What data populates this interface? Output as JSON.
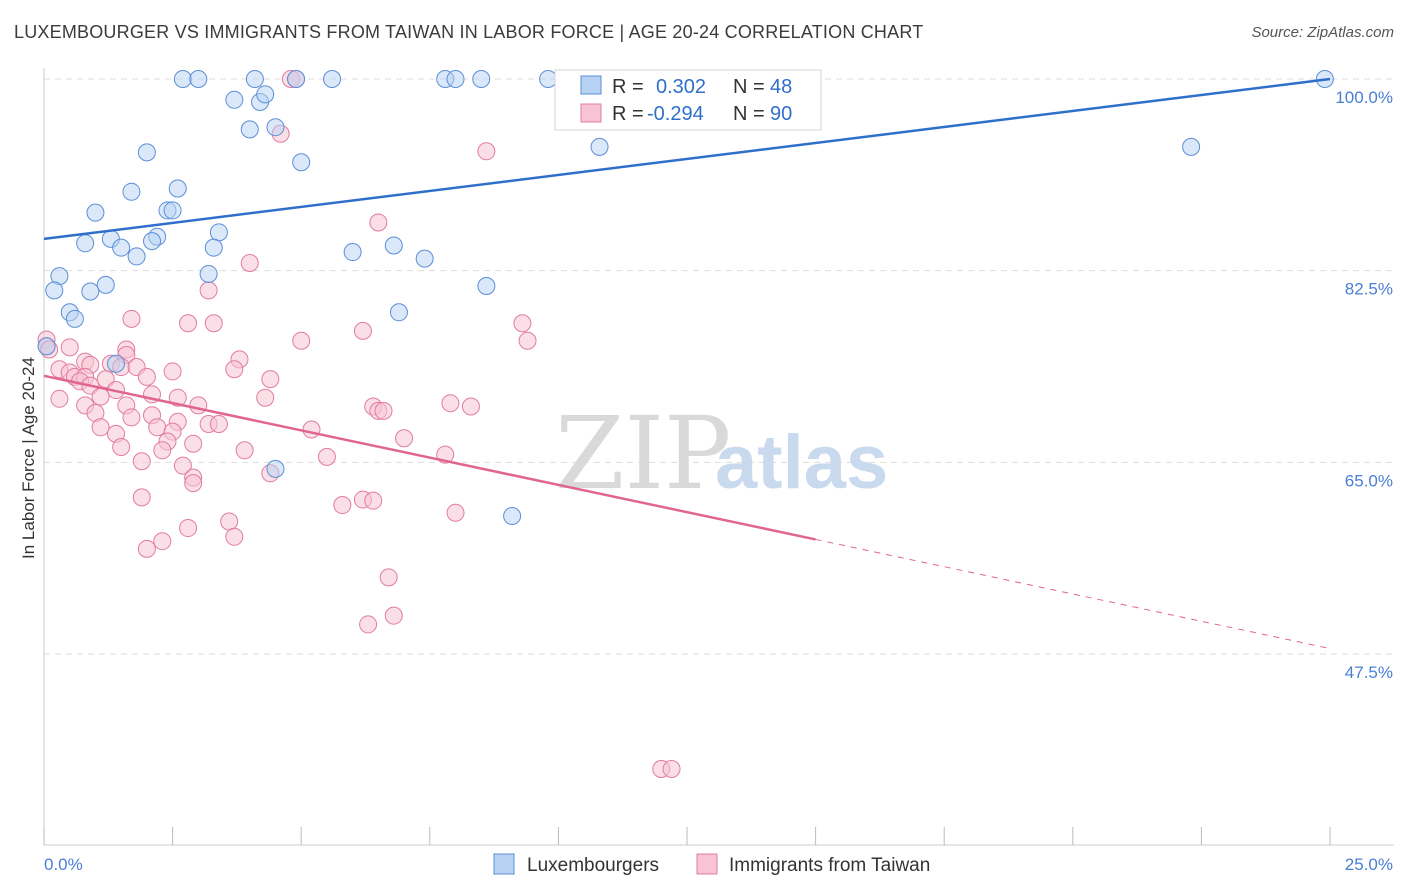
{
  "header": {
    "title": "LUXEMBOURGER VS IMMIGRANTS FROM TAIWAN IN LABOR FORCE | AGE 20-24 CORRELATION CHART",
    "source": "Source: ZipAtlas.com"
  },
  "watermark": {
    "zip": "ZIP",
    "atlas": "atlas"
  },
  "colors": {
    "blue_fill": "#b8d2f4",
    "blue_stroke": "#5b8fd6",
    "blue_line": "#2f6fcc",
    "pink_fill": "#f8c4d4",
    "pink_stroke": "#e17ca0",
    "pink_line": "#e0668f",
    "tick_label": "#4a7fd4",
    "grid": "#dddddd"
  },
  "legend": {
    "rows": [
      {
        "r_label": "R =",
        "r_value": "0.302",
        "n_label": "N =",
        "n_value": "48"
      },
      {
        "r_label": "R =",
        "r_value": "-0.294",
        "n_label": "N =",
        "n_value": "90"
      }
    ]
  },
  "chart_data": {
    "type": "scatter",
    "title": "LUXEMBOURGER VS IMMIGRANTS FROM TAIWAN IN LABOR FORCE | AGE 20-24 CORRELATION CHART",
    "xlabel": "",
    "ylabel": "In Labor Force | Age 20-24",
    "xlim": [
      0,
      25
    ],
    "ylim": [
      29,
      102
    ],
    "x_tick_labels": [
      "0.0%",
      "25.0%"
    ],
    "y_ticks": [
      47.5,
      65.0,
      82.5,
      100.0
    ],
    "y_tick_labels": [
      "47.5%",
      "65.0%",
      "82.5%",
      "100.0%"
    ],
    "grid": true,
    "legend_position": "top-center",
    "series": [
      {
        "name": "Luxembourgers",
        "color": "#5b8fd6",
        "r": 0.302,
        "n": 48,
        "trend": {
          "x": [
            0,
            25
          ],
          "y": [
            85.4,
            100.0
          ],
          "solid_until": 25
        },
        "points": [
          {
            "x": 2.7,
            "y": 100
          },
          {
            "x": 3.0,
            "y": 100
          },
          {
            "x": 4.1,
            "y": 100
          },
          {
            "x": 4.9,
            "y": 100
          },
          {
            "x": 5.6,
            "y": 100
          },
          {
            "x": 7.8,
            "y": 100
          },
          {
            "x": 8.0,
            "y": 100
          },
          {
            "x": 8.5,
            "y": 100
          },
          {
            "x": 9.8,
            "y": 100
          },
          {
            "x": 24.9,
            "y": 100
          },
          {
            "x": 3.7,
            "y": 98.1
          },
          {
            "x": 4.2,
            "y": 97.9
          },
          {
            "x": 4.3,
            "y": 98.6
          },
          {
            "x": 4.0,
            "y": 95.4
          },
          {
            "x": 4.5,
            "y": 95.6
          },
          {
            "x": 5.0,
            "y": 92.4
          },
          {
            "x": 2.0,
            "y": 93.3
          },
          {
            "x": 10.8,
            "y": 93.8
          },
          {
            "x": 22.3,
            "y": 93.8
          },
          {
            "x": 1.7,
            "y": 89.7
          },
          {
            "x": 2.6,
            "y": 90.0
          },
          {
            "x": 2.4,
            "y": 88.0
          },
          {
            "x": 2.5,
            "y": 88.0
          },
          {
            "x": 1.0,
            "y": 87.8
          },
          {
            "x": 3.4,
            "y": 86.0
          },
          {
            "x": 2.2,
            "y": 85.6
          },
          {
            "x": 2.1,
            "y": 85.2
          },
          {
            "x": 1.3,
            "y": 85.4
          },
          {
            "x": 0.8,
            "y": 85.0
          },
          {
            "x": 1.5,
            "y": 84.6
          },
          {
            "x": 3.3,
            "y": 84.6
          },
          {
            "x": 1.8,
            "y": 83.8
          },
          {
            "x": 6.0,
            "y": 84.2
          },
          {
            "x": 6.8,
            "y": 84.8
          },
          {
            "x": 7.4,
            "y": 83.6
          },
          {
            "x": 3.2,
            "y": 82.2
          },
          {
            "x": 0.3,
            "y": 82.0
          },
          {
            "x": 1.2,
            "y": 81.2
          },
          {
            "x": 0.2,
            "y": 80.7
          },
          {
            "x": 0.9,
            "y": 80.6
          },
          {
            "x": 8.6,
            "y": 81.1
          },
          {
            "x": 0.5,
            "y": 78.7
          },
          {
            "x": 0.6,
            "y": 78.1
          },
          {
            "x": 6.9,
            "y": 78.7
          },
          {
            "x": 1.4,
            "y": 74.0
          },
          {
            "x": 4.5,
            "y": 64.4
          },
          {
            "x": 9.1,
            "y": 60.1
          },
          {
            "x": 0.05,
            "y": 75.6
          }
        ]
      },
      {
        "name": "Immigrants from Taiwan",
        "color": "#e17ca0",
        "r": -0.294,
        "n": 90,
        "trend": {
          "x": [
            0,
            25
          ],
          "y": [
            72.9,
            48.0
          ],
          "solid_until": 15
        },
        "points": [
          {
            "x": 4.8,
            "y": 100
          },
          {
            "x": 4.9,
            "y": 100
          },
          {
            "x": 4.6,
            "y": 95.0
          },
          {
            "x": 8.6,
            "y": 93.4
          },
          {
            "x": 6.5,
            "y": 86.9
          },
          {
            "x": 4.0,
            "y": 83.2
          },
          {
            "x": 3.2,
            "y": 80.7
          },
          {
            "x": 1.7,
            "y": 78.1
          },
          {
            "x": 2.8,
            "y": 77.7
          },
          {
            "x": 3.3,
            "y": 77.7
          },
          {
            "x": 6.2,
            "y": 77.0
          },
          {
            "x": 5.0,
            "y": 76.1
          },
          {
            "x": 9.3,
            "y": 77.7
          },
          {
            "x": 9.4,
            "y": 76.1
          },
          {
            "x": 0.05,
            "y": 76.2
          },
          {
            "x": 0.05,
            "y": 75.6
          },
          {
            "x": 0.1,
            "y": 75.3
          },
          {
            "x": 0.5,
            "y": 75.5
          },
          {
            "x": 1.6,
            "y": 75.3
          },
          {
            "x": 1.6,
            "y": 74.8
          },
          {
            "x": 3.8,
            "y": 74.4
          },
          {
            "x": 0.8,
            "y": 74.2
          },
          {
            "x": 0.9,
            "y": 73.9
          },
          {
            "x": 1.3,
            "y": 74.0
          },
          {
            "x": 1.5,
            "y": 73.7
          },
          {
            "x": 1.8,
            "y": 73.7
          },
          {
            "x": 2.5,
            "y": 73.3
          },
          {
            "x": 3.7,
            "y": 73.5
          },
          {
            "x": 0.3,
            "y": 73.5
          },
          {
            "x": 0.5,
            "y": 73.2
          },
          {
            "x": 0.6,
            "y": 72.8
          },
          {
            "x": 0.8,
            "y": 72.8
          },
          {
            "x": 0.7,
            "y": 72.4
          },
          {
            "x": 1.2,
            "y": 72.6
          },
          {
            "x": 2.0,
            "y": 72.8
          },
          {
            "x": 4.4,
            "y": 72.6
          },
          {
            "x": 0.9,
            "y": 72.0
          },
          {
            "x": 1.4,
            "y": 71.6
          },
          {
            "x": 1.1,
            "y": 71.0
          },
          {
            "x": 2.1,
            "y": 71.2
          },
          {
            "x": 2.6,
            "y": 70.9
          },
          {
            "x": 4.3,
            "y": 70.9
          },
          {
            "x": 0.3,
            "y": 70.8
          },
          {
            "x": 0.8,
            "y": 70.2
          },
          {
            "x": 1.6,
            "y": 70.2
          },
          {
            "x": 3.0,
            "y": 70.2
          },
          {
            "x": 6.4,
            "y": 70.1
          },
          {
            "x": 6.5,
            "y": 69.7
          },
          {
            "x": 6.6,
            "y": 69.7
          },
          {
            "x": 7.9,
            "y": 70.4
          },
          {
            "x": 8.3,
            "y": 70.1
          },
          {
            "x": 1.0,
            "y": 69.5
          },
          {
            "x": 1.7,
            "y": 69.1
          },
          {
            "x": 2.1,
            "y": 69.3
          },
          {
            "x": 2.6,
            "y": 68.7
          },
          {
            "x": 3.2,
            "y": 68.5
          },
          {
            "x": 3.4,
            "y": 68.5
          },
          {
            "x": 1.1,
            "y": 68.2
          },
          {
            "x": 2.2,
            "y": 68.2
          },
          {
            "x": 2.5,
            "y": 67.8
          },
          {
            "x": 5.2,
            "y": 68.0
          },
          {
            "x": 1.4,
            "y": 67.6
          },
          {
            "x": 2.4,
            "y": 66.9
          },
          {
            "x": 2.9,
            "y": 66.7
          },
          {
            "x": 7.0,
            "y": 67.2
          },
          {
            "x": 1.5,
            "y": 66.4
          },
          {
            "x": 2.3,
            "y": 66.1
          },
          {
            "x": 3.9,
            "y": 66.1
          },
          {
            "x": 5.5,
            "y": 65.5
          },
          {
            "x": 7.8,
            "y": 65.7
          },
          {
            "x": 1.9,
            "y": 65.1
          },
          {
            "x": 2.7,
            "y": 64.7
          },
          {
            "x": 4.4,
            "y": 64.0
          },
          {
            "x": 2.9,
            "y": 63.6
          },
          {
            "x": 2.9,
            "y": 63.1
          },
          {
            "x": 1.9,
            "y": 61.8
          },
          {
            "x": 6.2,
            "y": 61.6
          },
          {
            "x": 6.4,
            "y": 61.5
          },
          {
            "x": 5.8,
            "y": 61.1
          },
          {
            "x": 8.0,
            "y": 60.4
          },
          {
            "x": 3.6,
            "y": 59.6
          },
          {
            "x": 2.8,
            "y": 59.0
          },
          {
            "x": 3.7,
            "y": 58.2
          },
          {
            "x": 2.3,
            "y": 57.8
          },
          {
            "x": 2.0,
            "y": 57.1
          },
          {
            "x": 6.7,
            "y": 54.5
          },
          {
            "x": 6.8,
            "y": 51.0
          },
          {
            "x": 6.3,
            "y": 50.2
          },
          {
            "x": 12.0,
            "y": 37.0
          },
          {
            "x": 12.2,
            "y": 37.0
          }
        ]
      }
    ]
  }
}
